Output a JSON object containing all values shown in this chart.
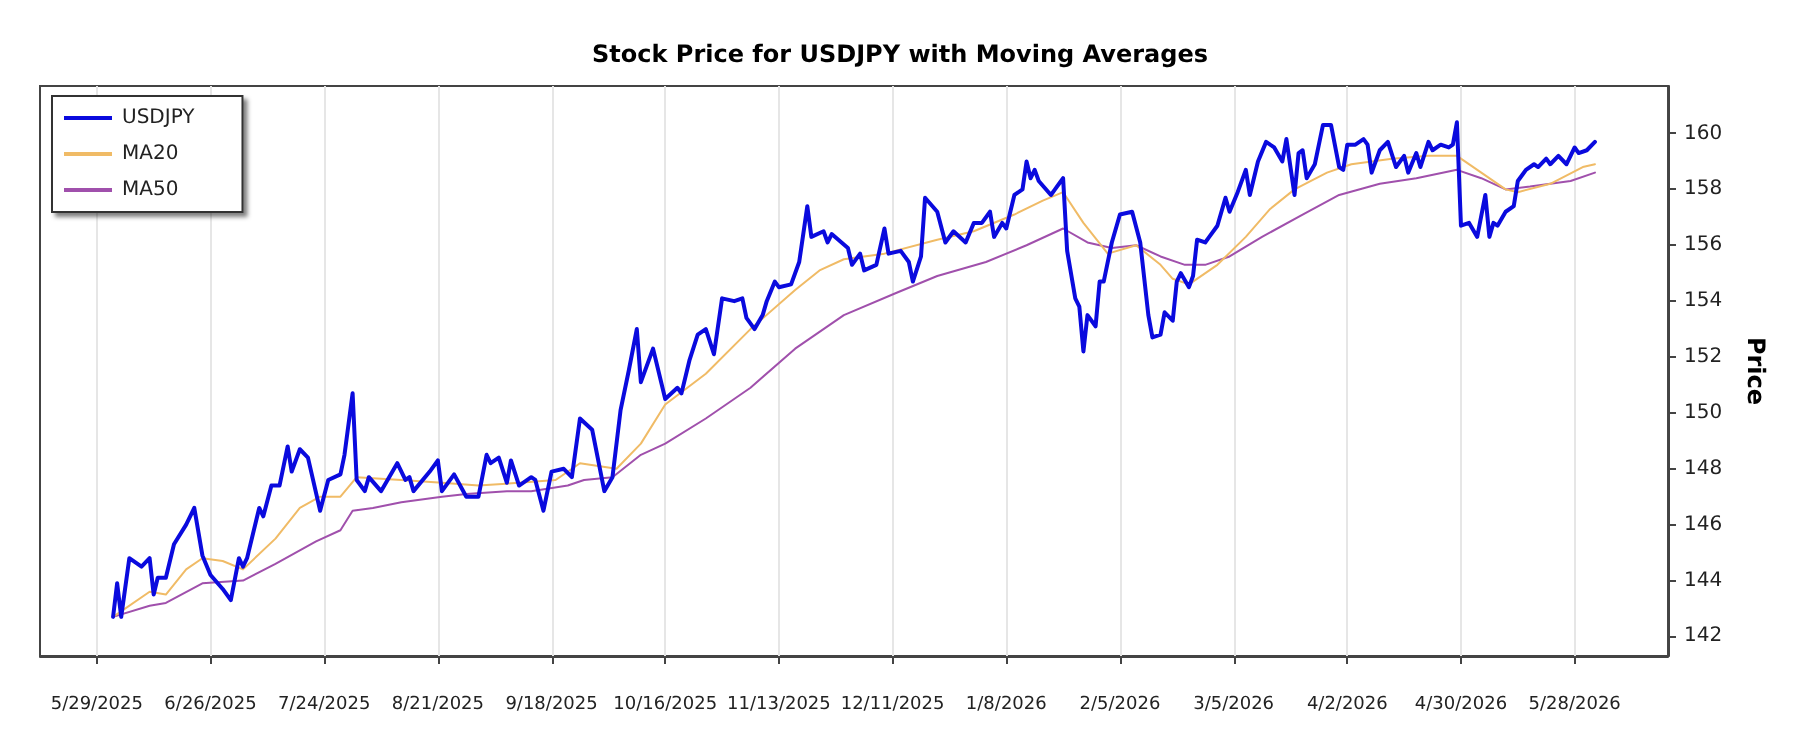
{
  "chart_data": {
    "type": "line",
    "title": "Stock Price for USDJPY with Moving Averages",
    "ylabel": "Price",
    "xlim": [
      "2025-05-15",
      "2026-06-20"
    ],
    "ylim": [
      141.3,
      161.7
    ],
    "yticks": [
      142,
      144,
      146,
      148,
      150,
      152,
      154,
      156,
      158,
      160
    ],
    "xticks": [
      {
        "value": "2025-05-29",
        "label": "5/29/2025"
      },
      {
        "value": "2025-06-26",
        "label": "6/26/2025"
      },
      {
        "value": "2025-07-24",
        "label": "7/24/2025"
      },
      {
        "value": "2025-08-21",
        "label": "8/21/2025"
      },
      {
        "value": "2025-09-18",
        "label": "9/18/2025"
      },
      {
        "value": "2025-10-16",
        "label": "10/16/2025"
      },
      {
        "value": "2025-11-13",
        "label": "11/13/2025"
      },
      {
        "value": "2025-12-11",
        "label": "12/11/2025"
      },
      {
        "value": "2026-01-08",
        "label": "1/8/2026"
      },
      {
        "value": "2026-02-05",
        "label": "2/5/2026"
      },
      {
        "value": "2026-03-05",
        "label": "3/5/2026"
      },
      {
        "value": "2026-04-02",
        "label": "4/2/2026"
      },
      {
        "value": "2026-04-30",
        "label": "4/30/2026"
      },
      {
        "value": "2026-05-28",
        "label": "5/28/2026"
      }
    ],
    "grid": "x",
    "legend": "top left",
    "marker": "none",
    "series": [
      {
        "name": "USDJPY",
        "color": "#0a0ade",
        "x": [
          "2025-06-02",
          "2025-06-03",
          "2025-06-04",
          "2025-06-06",
          "2025-06-09",
          "2025-06-11",
          "2025-06-12",
          "2025-06-13",
          "2025-06-15",
          "2025-06-17",
          "2025-06-20",
          "2025-06-22",
          "2025-06-24",
          "2025-06-26",
          "2025-06-29",
          "2025-07-01",
          "2025-07-03",
          "2025-07-04",
          "2025-07-05",
          "2025-07-08",
          "2025-07-09",
          "2025-07-11",
          "2025-07-13",
          "2025-07-15",
          "2025-07-16",
          "2025-07-18",
          "2025-07-20",
          "2025-07-23",
          "2025-07-25",
          "2025-07-28",
          "2025-07-29",
          "2025-07-31",
          "2025-08-01",
          "2025-08-03",
          "2025-08-04",
          "2025-08-07",
          "2025-08-09",
          "2025-08-11",
          "2025-08-13",
          "2025-08-14",
          "2025-08-15",
          "2025-08-19",
          "2025-08-21",
          "2025-08-22",
          "2025-08-25",
          "2025-08-28",
          "2025-08-31",
          "2025-09-02",
          "2025-09-03",
          "2025-09-05",
          "2025-09-07",
          "2025-09-08",
          "2025-09-10",
          "2025-09-13",
          "2025-09-14",
          "2025-09-16",
          "2025-09-18",
          "2025-09-21",
          "2025-09-23",
          "2025-09-25",
          "2025-09-28",
          "2025-10-01",
          "2025-10-03",
          "2025-10-05",
          "2025-10-07",
          "2025-10-09",
          "2025-10-10",
          "2025-10-13",
          "2025-10-16",
          "2025-10-19",
          "2025-10-20",
          "2025-10-22",
          "2025-10-24",
          "2025-10-26",
          "2025-10-28",
          "2025-10-30",
          "2025-11-02",
          "2025-11-04",
          "2025-11-05",
          "2025-11-07",
          "2025-11-09",
          "2025-11-10",
          "2025-11-12",
          "2025-11-13",
          "2025-11-16",
          "2025-11-18",
          "2025-11-20",
          "2025-11-21",
          "2025-11-24",
          "2025-11-25",
          "2025-11-26",
          "2025-11-30",
          "2025-12-01",
          "2025-12-03",
          "2025-12-04",
          "2025-12-07",
          "2025-12-09",
          "2025-12-10",
          "2025-12-13",
          "2025-12-15",
          "2025-12-16",
          "2025-12-18",
          "2025-12-19",
          "2025-12-22",
          "2025-12-24",
          "2025-12-26",
          "2025-12-29",
          "2025-12-31",
          "2026-01-02",
          "2026-01-04",
          "2026-01-05",
          "2026-01-07",
          "2026-01-08",
          "2026-01-10",
          "2026-01-12",
          "2026-01-13",
          "2026-01-14",
          "2026-01-15",
          "2026-01-16",
          "2026-01-19",
          "2026-01-20",
          "2026-01-21",
          "2026-01-22",
          "2026-01-23",
          "2026-01-25",
          "2026-01-26",
          "2026-01-27",
          "2026-01-28",
          "2026-01-30",
          "2026-01-31",
          "2026-02-01",
          "2026-02-03",
          "2026-02-05",
          "2026-02-08",
          "2026-02-10",
          "2026-02-12",
          "2026-02-13",
          "2026-02-15",
          "2026-02-16",
          "2026-02-18",
          "2026-02-19",
          "2026-02-20",
          "2026-02-22",
          "2026-02-23",
          "2026-02-24",
          "2026-02-26",
          "2026-02-27",
          "2026-03-01",
          "2026-03-03",
          "2026-03-04",
          "2026-03-06",
          "2026-03-08",
          "2026-03-09",
          "2026-03-11",
          "2026-03-13",
          "2026-03-15",
          "2026-03-17",
          "2026-03-18",
          "2026-03-20",
          "2026-03-21",
          "2026-03-22",
          "2026-03-23",
          "2026-03-25",
          "2026-03-27",
          "2026-03-29",
          "2026-03-31",
          "2026-04-01",
          "2026-04-02",
          "2026-04-04",
          "2026-04-06",
          "2026-04-07",
          "2026-04-08",
          "2026-04-10",
          "2026-04-12",
          "2026-04-14",
          "2026-04-16",
          "2026-04-17",
          "2026-04-19",
          "2026-04-20",
          "2026-04-22",
          "2026-04-23",
          "2026-04-25",
          "2026-04-27",
          "2026-04-28",
          "2026-04-29",
          "2026-04-30",
          "2026-05-02",
          "2026-05-04",
          "2026-05-06",
          "2026-05-07",
          "2026-05-08",
          "2026-05-09",
          "2026-05-11",
          "2026-05-13",
          "2026-05-14",
          "2026-05-16",
          "2026-05-18",
          "2026-05-19",
          "2026-05-21",
          "2026-05-22",
          "2026-05-24",
          "2026-05-26",
          "2026-05-28",
          "2026-05-29",
          "2026-05-31",
          "2026-06-02"
        ],
        "values": [
          142.7,
          143.9,
          142.7,
          144.8,
          144.5,
          144.8,
          143.5,
          144.1,
          144.1,
          145.3,
          146.0,
          146.6,
          144.9,
          144.2,
          143.7,
          143.3,
          144.8,
          144.5,
          144.8,
          146.6,
          146.3,
          147.4,
          147.4,
          148.8,
          147.9,
          148.7,
          148.4,
          146.5,
          147.6,
          147.8,
          148.5,
          150.7,
          147.6,
          147.2,
          147.7,
          147.2,
          147.7,
          148.2,
          147.6,
          147.7,
          147.2,
          147.9,
          148.3,
          147.2,
          147.8,
          147.0,
          147.0,
          148.5,
          148.2,
          148.4,
          147.5,
          148.3,
          147.4,
          147.7,
          147.6,
          146.5,
          147.9,
          148.0,
          147.7,
          149.8,
          149.4,
          147.2,
          147.7,
          150.1,
          151.5,
          153.0,
          151.1,
          152.3,
          150.5,
          150.9,
          150.7,
          151.9,
          152.8,
          153.0,
          152.1,
          154.1,
          154.0,
          154.1,
          153.4,
          153.0,
          153.5,
          154.0,
          154.7,
          154.5,
          154.6,
          155.4,
          157.4,
          156.3,
          156.5,
          156.1,
          156.4,
          155.9,
          155.3,
          155.7,
          155.1,
          155.3,
          156.6,
          155.7,
          155.8,
          155.4,
          154.7,
          155.6,
          157.7,
          157.2,
          156.1,
          156.5,
          156.1,
          156.8,
          156.8,
          157.2,
          156.3,
          156.8,
          156.6,
          157.8,
          158.0,
          159.0,
          158.4,
          158.7,
          158.3,
          157.8,
          158.0,
          158.2,
          158.4,
          155.8,
          154.1,
          153.8,
          152.2,
          153.5,
          153.1,
          154.7,
          154.7,
          156.1,
          157.1,
          157.2,
          156.1,
          153.5,
          152.7,
          152.8,
          153.6,
          153.3,
          154.7,
          155.0,
          154.5,
          154.9,
          156.2,
          156.1,
          156.3,
          156.7,
          157.7,
          157.2,
          157.9,
          158.7,
          157.8,
          159.0,
          159.7,
          159.5,
          159.0,
          159.8,
          157.8,
          159.3,
          159.4,
          158.4,
          158.9,
          160.3,
          160.3,
          158.8,
          158.7,
          159.6,
          159.6,
          159.8,
          159.6,
          158.6,
          159.4,
          159.7,
          158.8,
          159.2,
          158.6,
          159.3,
          158.8,
          159.7,
          159.4,
          159.6,
          159.5,
          159.6,
          160.4,
          156.7,
          156.8,
          156.3,
          157.8,
          156.3,
          156.8,
          156.7,
          157.2,
          157.4,
          158.3,
          158.7,
          158.9,
          158.8,
          159.1,
          158.9,
          159.2,
          158.9,
          159.5,
          159.3,
          159.4,
          159.7
        ]
      },
      {
        "name": "MA20",
        "color": "#f0bb66",
        "x": [
          "2025-06-02",
          "2025-06-11",
          "2025-06-15",
          "2025-06-20",
          "2025-06-24",
          "2025-06-29",
          "2025-07-04",
          "2025-07-12",
          "2025-07-18",
          "2025-07-23",
          "2025-07-28",
          "2025-08-01",
          "2025-08-12",
          "2025-08-22",
          "2025-08-31",
          "2025-09-10",
          "2025-09-19",
          "2025-09-25",
          "2025-10-04",
          "2025-10-10",
          "2025-10-16",
          "2025-10-26",
          "2025-11-06",
          "2025-11-17",
          "2025-11-23",
          "2025-11-29",
          "2025-12-09",
          "2025-12-22",
          "2025-12-31",
          "2026-01-10",
          "2026-01-17",
          "2026-01-22",
          "2026-01-27",
          "2026-02-02",
          "2026-02-09",
          "2026-02-15",
          "2026-02-18",
          "2026-02-22",
          "2026-03-01",
          "2026-03-08",
          "2026-03-14",
          "2026-03-20",
          "2026-03-28",
          "2026-04-03",
          "2026-04-13",
          "2026-04-22",
          "2026-04-29",
          "2026-05-05",
          "2026-05-11",
          "2026-05-14",
          "2026-05-22",
          "2026-05-30",
          "2026-06-02"
        ],
        "values": [
          142.7,
          143.6,
          143.5,
          144.4,
          144.8,
          144.7,
          144.4,
          145.5,
          146.6,
          147.0,
          147.0,
          147.7,
          147.6,
          147.5,
          147.4,
          147.5,
          147.6,
          148.2,
          148.0,
          148.9,
          150.3,
          151.4,
          153.0,
          154.4,
          155.1,
          155.5,
          155.7,
          156.2,
          156.5,
          157.1,
          157.6,
          157.9,
          156.8,
          155.7,
          156.0,
          155.3,
          154.8,
          154.6,
          155.3,
          156.3,
          157.3,
          158.0,
          158.6,
          158.9,
          159.1,
          159.2,
          159.2,
          158.6,
          158.0,
          157.9,
          158.2,
          158.8,
          158.9
        ]
      },
      {
        "name": "MA50",
        "color": "#a050ac",
        "x": [
          "2025-06-02",
          "2025-06-11",
          "2025-06-15",
          "2025-06-24",
          "2025-07-04",
          "2025-07-12",
          "2025-07-22",
          "2025-07-28",
          "2025-07-31",
          "2025-08-05",
          "2025-08-12",
          "2025-08-22",
          "2025-08-28",
          "2025-09-07",
          "2025-09-13",
          "2025-09-22",
          "2025-09-26",
          "2025-10-03",
          "2025-10-10",
          "2025-10-16",
          "2025-10-26",
          "2025-11-06",
          "2025-11-17",
          "2025-11-29",
          "2025-12-12",
          "2025-12-22",
          "2026-01-03",
          "2026-01-13",
          "2026-01-22",
          "2026-01-28",
          "2026-02-03",
          "2026-02-09",
          "2026-02-15",
          "2026-02-21",
          "2026-02-26",
          "2026-03-04",
          "2026-03-12",
          "2026-03-22",
          "2026-03-31",
          "2026-04-10",
          "2026-04-19",
          "2026-04-29",
          "2026-05-05",
          "2026-05-11",
          "2026-05-17",
          "2026-05-27",
          "2026-06-02"
        ],
        "values": [
          142.7,
          143.1,
          143.2,
          143.9,
          144.0,
          144.6,
          145.4,
          145.8,
          146.5,
          146.6,
          146.8,
          147.0,
          147.1,
          147.2,
          147.2,
          147.4,
          147.6,
          147.7,
          148.5,
          148.9,
          149.8,
          150.9,
          152.3,
          153.5,
          154.3,
          154.9,
          155.4,
          156.0,
          156.6,
          156.1,
          155.9,
          156.0,
          155.6,
          155.3,
          155.3,
          155.6,
          156.3,
          157.1,
          157.8,
          158.2,
          158.4,
          158.7,
          158.4,
          158.0,
          158.1,
          158.3,
          158.6
        ]
      }
    ]
  }
}
